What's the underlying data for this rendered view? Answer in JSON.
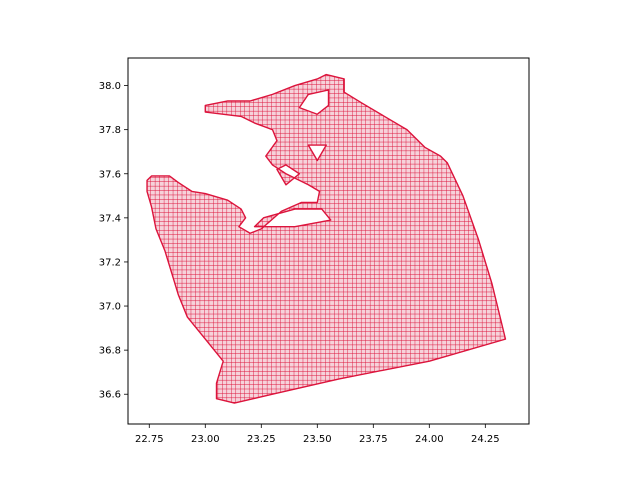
{
  "chart_data": {
    "type": "scatter",
    "title": "",
    "xlabel": "",
    "ylabel": "",
    "xlim": [
      22.655,
      24.445
    ],
    "ylim": [
      36.465,
      38.125
    ],
    "grid": false,
    "legend": "none",
    "x_ticks": [
      "22.75",
      "23.00",
      "23.25",
      "23.50",
      "23.75",
      "24.00",
      "24.25"
    ],
    "x_tick_values": [
      22.75,
      23.0,
      23.25,
      23.5,
      23.75,
      24.0,
      24.25
    ],
    "y_ticks": [
      "36.6",
      "36.8",
      "37.0",
      "37.2",
      "37.4",
      "37.6",
      "37.8",
      "38.0"
    ],
    "y_tick_values": [
      36.6,
      36.8,
      37.0,
      37.2,
      37.4,
      37.6,
      37.8,
      38.0
    ],
    "series": [
      {
        "color": "#dc143c",
        "grid_cell_size": 0.02,
        "outline": [
          [
            22.74,
            37.57
          ],
          [
            22.76,
            37.59
          ],
          [
            22.84,
            37.59
          ],
          [
            22.88,
            37.56
          ],
          [
            22.94,
            37.52
          ],
          [
            23.0,
            37.51
          ],
          [
            23.1,
            37.48
          ],
          [
            23.16,
            37.44
          ],
          [
            23.18,
            37.4
          ],
          [
            23.15,
            37.36
          ],
          [
            23.2,
            37.33
          ],
          [
            23.25,
            37.35
          ],
          [
            23.34,
            37.43
          ],
          [
            23.43,
            37.47
          ],
          [
            23.5,
            37.47
          ],
          [
            23.51,
            37.52
          ],
          [
            23.46,
            37.55
          ],
          [
            23.36,
            37.6
          ],
          [
            23.3,
            37.64
          ],
          [
            23.27,
            37.68
          ],
          [
            23.32,
            37.75
          ],
          [
            23.3,
            37.8
          ],
          [
            23.22,
            37.83
          ],
          [
            23.16,
            37.86
          ],
          [
            23.0,
            37.88
          ],
          [
            23.0,
            37.91
          ],
          [
            23.1,
            37.93
          ],
          [
            23.2,
            37.93
          ],
          [
            23.3,
            37.96
          ],
          [
            23.4,
            38.0
          ],
          [
            23.5,
            38.03
          ],
          [
            23.54,
            38.05
          ],
          [
            23.62,
            38.03
          ],
          [
            23.62,
            37.97
          ],
          [
            23.7,
            37.92
          ],
          [
            23.8,
            37.86
          ],
          [
            23.9,
            37.8
          ],
          [
            23.98,
            37.72
          ],
          [
            24.05,
            37.68
          ],
          [
            24.08,
            37.65
          ],
          [
            24.15,
            37.5
          ],
          [
            24.22,
            37.3
          ],
          [
            24.28,
            37.1
          ],
          [
            24.34,
            36.85
          ],
          [
            24.0,
            36.75
          ],
          [
            23.6,
            36.67
          ],
          [
            23.3,
            36.6
          ],
          [
            23.13,
            36.56
          ],
          [
            23.05,
            36.58
          ],
          [
            23.05,
            36.65
          ],
          [
            23.08,
            36.75
          ],
          [
            23.0,
            36.85
          ],
          [
            22.92,
            36.95
          ],
          [
            22.88,
            37.05
          ],
          [
            22.85,
            37.15
          ],
          [
            22.82,
            37.25
          ],
          [
            22.78,
            37.35
          ],
          [
            22.76,
            37.45
          ],
          [
            22.74,
            37.52
          ]
        ],
        "holes": [
          [
            [
              23.22,
              37.36
            ],
            [
              23.4,
              37.36
            ],
            [
              23.56,
              37.39
            ],
            [
              23.52,
              37.44
            ],
            [
              23.4,
              37.44
            ],
            [
              23.26,
              37.4
            ]
          ],
          [
            [
              23.36,
              37.64
            ],
            [
              23.42,
              37.6
            ],
            [
              23.36,
              37.55
            ],
            [
              23.32,
              37.62
            ]
          ],
          [
            [
              23.46,
              37.73
            ],
            [
              23.54,
              37.73
            ],
            [
              23.5,
              37.66
            ]
          ],
          [
            [
              23.42,
              37.9
            ],
            [
              23.5,
              37.87
            ],
            [
              23.55,
              37.91
            ],
            [
              23.55,
              37.98
            ],
            [
              23.46,
              37.96
            ]
          ]
        ]
      }
    ]
  }
}
